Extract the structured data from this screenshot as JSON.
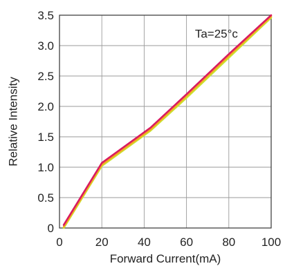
{
  "chart_data": {
    "type": "line",
    "title": "",
    "xlabel": "Forward Current(mA)",
    "ylabel": "Relative Intensity",
    "xlim": [
      0,
      100
    ],
    "ylim": [
      0,
      3.5
    ],
    "x_ticks": [
      0,
      20,
      40,
      60,
      80,
      100
    ],
    "x_tick_labels": [
      "0",
      "20",
      "40",
      "60",
      "80",
      "100"
    ],
    "y_ticks": [
      0,
      0.5,
      1.0,
      1.5,
      2.0,
      2.5,
      3.0,
      3.5
    ],
    "y_tick_labels": [
      "0",
      "0.5",
      "1.0",
      "1.5",
      "2.0",
      "2.5",
      "3.0",
      "3.5"
    ],
    "grid": true,
    "annotation": "Ta=25°c",
    "series": [
      {
        "color": "#c8e632",
        "x": [
          2,
          20,
          43,
          60,
          80,
          100
        ],
        "y": [
          0.0,
          1.02,
          1.6,
          2.14,
          2.8,
          3.46
        ]
      },
      {
        "color": "#f5a623",
        "x": [
          2,
          20,
          43,
          60,
          80,
          100
        ],
        "y": [
          0.02,
          1.04,
          1.62,
          2.17,
          2.83,
          3.48
        ]
      },
      {
        "color": "#d81b60",
        "x": [
          2,
          20,
          43,
          60,
          80,
          100
        ],
        "y": [
          0.05,
          1.07,
          1.65,
          2.2,
          2.86,
          3.5
        ]
      }
    ]
  }
}
